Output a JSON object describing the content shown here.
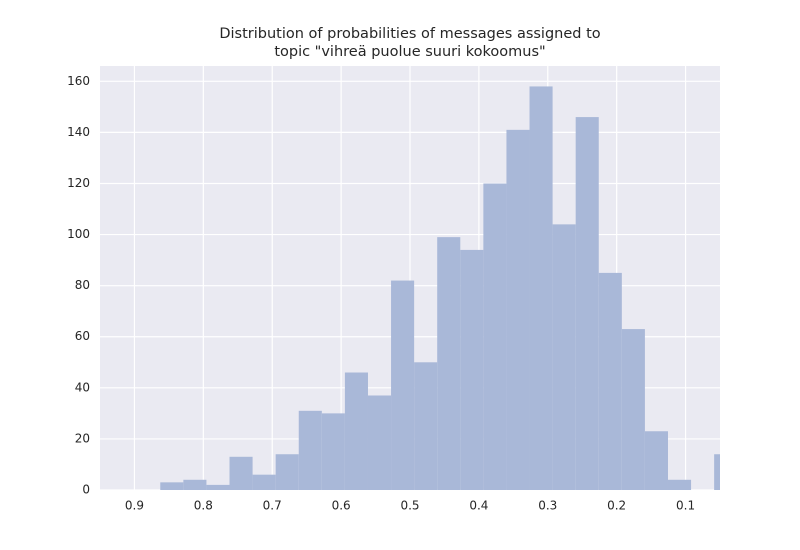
{
  "chart_data": {
    "type": "histogram",
    "title": [
      "Distribution of probabilities of messages assigned to",
      "topic \"vihreä puolue suuri kokoomus\""
    ],
    "bins": [
      0.025,
      0.0585,
      0.092,
      0.1255,
      0.159,
      0.1925,
      0.226,
      0.2595,
      0.293,
      0.3265,
      0.36,
      0.3935,
      0.427,
      0.4605,
      0.494,
      0.5275,
      0.561,
      0.5945,
      0.628,
      0.6615,
      0.695,
      0.7285,
      0.762,
      0.7955,
      0.829,
      0.8625
    ],
    "values": [
      14,
      0,
      4,
      23,
      63,
      85,
      146,
      104,
      158,
      141,
      120,
      94,
      99,
      50,
      82,
      37,
      46,
      30,
      31,
      14,
      6,
      13,
      2,
      4,
      3
    ],
    "color": "#a9b8d8",
    "xlim": [
      0.95,
      0.05
    ],
    "xticks": [
      0.9,
      0.8,
      0.7,
      0.6,
      0.5,
      0.4,
      0.3,
      0.2,
      0.1
    ],
    "ylim": [
      0,
      166
    ],
    "yticks": [
      0,
      20,
      40,
      60,
      80,
      100,
      120,
      140,
      160
    ],
    "grid": true
  }
}
